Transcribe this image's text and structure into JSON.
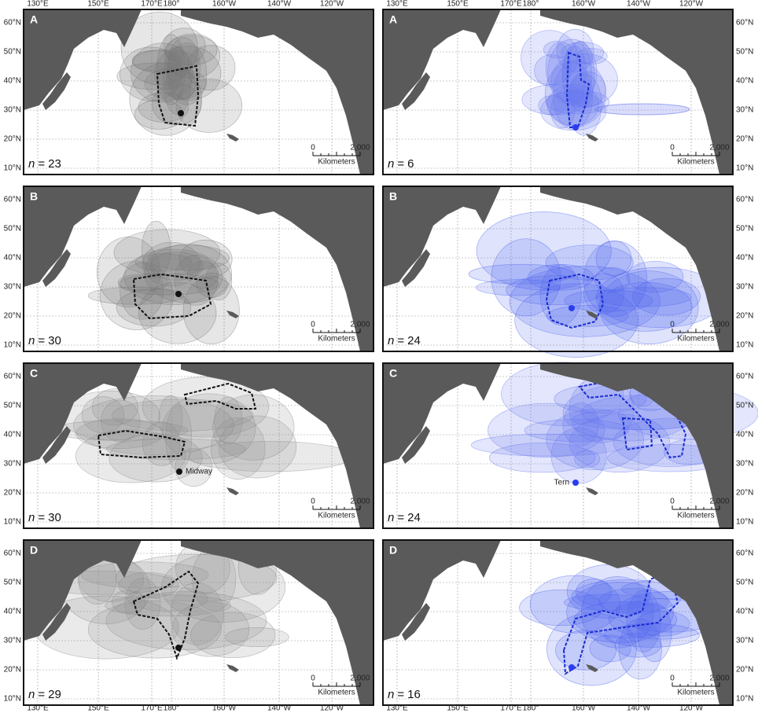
{
  "lon_labels_top": [
    "130°E",
    "150°E",
    "170°E",
    "180°",
    "160°W",
    "140°W",
    "120°W"
  ],
  "lon_labels_bottom": [
    "130°E",
    "150°E",
    "170°E",
    "180°",
    "160°W",
    "140°W",
    "120°W"
  ],
  "lat_labels": [
    "60°N",
    "50°N",
    "40°N",
    "30°N",
    "20°N",
    "10°N"
  ],
  "scale_bar": {
    "start": "0",
    "end": "2,000",
    "unit": "Kilometers"
  },
  "count_symbol": "n",
  "count_sign": "=",
  "panels": [
    {
      "letter": "A",
      "count": 23
    },
    {
      "letter": "A",
      "count": 6
    },
    {
      "letter": "B",
      "count": 30
    },
    {
      "letter": "B",
      "count": 24
    },
    {
      "letter": "C",
      "count": 30,
      "marker": "Midway"
    },
    {
      "letter": "C",
      "count": 24,
      "marker": "Tern"
    },
    {
      "letter": "D",
      "count": 29
    },
    {
      "letter": "D",
      "count": 16
    }
  ]
}
